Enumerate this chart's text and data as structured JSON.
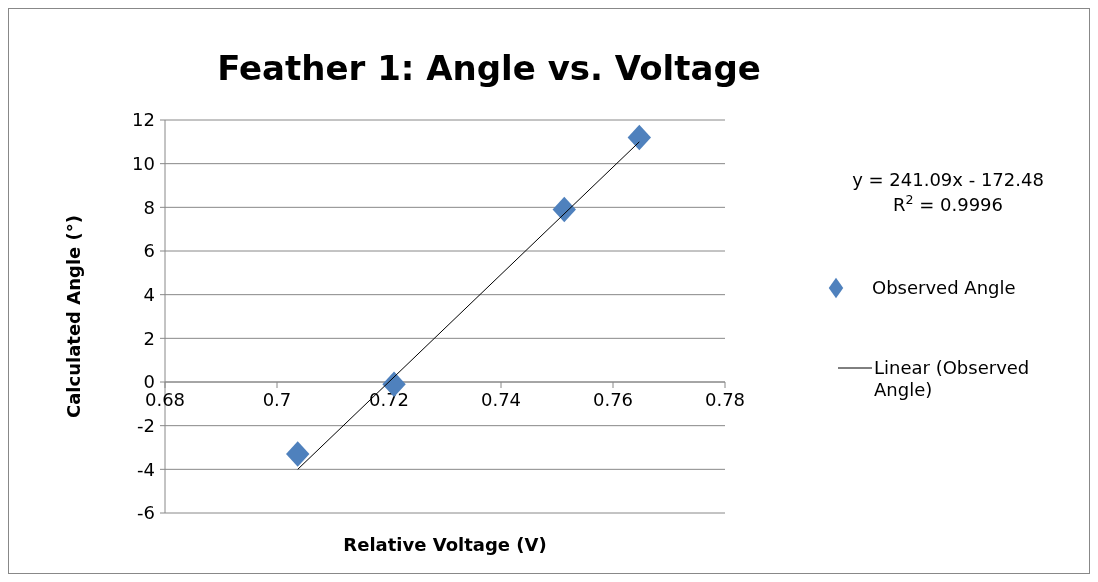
{
  "chart_data": {
    "type": "scatter",
    "title": "Feather 1: Angle vs. Voltage",
    "xlabel": "Relative Voltage (V)",
    "ylabel": "Calculated Angle (°)",
    "xlim": [
      0.68,
      0.78
    ],
    "xticks": [
      0.68,
      0.7,
      0.72,
      0.74,
      0.76,
      0.78
    ],
    "ylim": [
      -6,
      12
    ],
    "yticks": [
      -6,
      -4,
      -2,
      0,
      2,
      4,
      6,
      8,
      10,
      12
    ],
    "grid": "y",
    "legend": "right",
    "marker": "diamond",
    "series": [
      {
        "name": "Observed Angle",
        "color": "#4f81bd",
        "x": [
          0.7037,
          0.7209,
          0.7513,
          0.7647
        ],
        "values": [
          -3.3,
          -0.1,
          7.9,
          11.2
        ]
      },
      {
        "name": "Linear (Observed Angle)",
        "type": "line",
        "color": "#000000",
        "marker": "none",
        "x": [
          0.7037,
          0.7647
        ],
        "values": [
          -4,
          11
        ]
      }
    ],
    "annotations": [
      "y = 241.09x - 172.48",
      "R$^{2}$ = 0.9996"
    ]
  }
}
